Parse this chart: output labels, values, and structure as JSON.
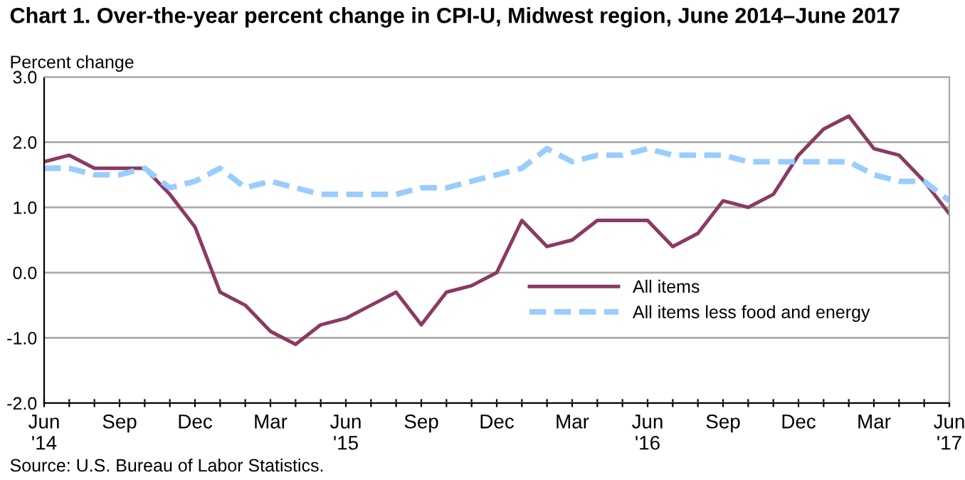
{
  "chart_data": {
    "type": "line",
    "title": "Chart 1. Over-the-year percent change in CPI-U, Midwest region, June 2014–June 2017",
    "ylabel": "Percent change",
    "categories": [
      "Jun\n'14",
      null,
      null,
      "Sep",
      null,
      null,
      "Dec",
      null,
      null,
      "Mar",
      null,
      null,
      "Jun\n'15",
      null,
      null,
      "Sep",
      null,
      null,
      "Dec",
      null,
      null,
      "Mar",
      null,
      null,
      "Jun\n'16",
      null,
      null,
      "Sep",
      null,
      null,
      "Dec",
      null,
      null,
      "Mar",
      null,
      null,
      "Jun\n'17"
    ],
    "series": [
      {
        "name": "All items",
        "color": "#8b3a62",
        "line_style": "solid",
        "values": [
          1.7,
          1.8,
          1.6,
          1.6,
          1.6,
          1.2,
          0.7,
          -0.3,
          -0.5,
          -0.9,
          -1.1,
          -0.8,
          -0.7,
          -0.5,
          -0.3,
          -0.8,
          -0.3,
          -0.2,
          0.0,
          0.8,
          0.4,
          0.5,
          0.8,
          0.8,
          0.8,
          0.4,
          0.6,
          1.1,
          1.0,
          1.2,
          1.8,
          2.2,
          2.4,
          1.9,
          1.8,
          1.4,
          0.9
        ]
      },
      {
        "name": "All items less food and energy",
        "color": "#99ccff",
        "line_style": "dashed",
        "values": [
          1.6,
          1.6,
          1.5,
          1.5,
          1.6,
          1.3,
          1.4,
          1.6,
          1.3,
          1.4,
          1.3,
          1.2,
          1.2,
          1.2,
          1.2,
          1.3,
          1.3,
          1.4,
          1.5,
          1.6,
          1.9,
          1.7,
          1.8,
          1.8,
          1.9,
          1.8,
          1.8,
          1.8,
          1.7,
          1.7,
          1.7,
          1.7,
          1.7,
          1.5,
          1.4,
          1.4,
          1.1
        ]
      }
    ],
    "ylim": [
      -2.0,
      3.0
    ],
    "yticks": [
      {
        "value": -2,
        "label": "-2.0"
      },
      {
        "value": -1,
        "label": "-1.0"
      },
      {
        "value": 0,
        "label": "0.0"
      },
      {
        "value": 1,
        "label": "1.0"
      },
      {
        "value": 2,
        "label": "2.0"
      },
      {
        "value": 3,
        "label": "3.0"
      }
    ],
    "grid": "y",
    "legend": "bottom right",
    "marker": "none",
    "annotations": [
      "Source: U.S. Bureau of Labor Statistics."
    ]
  }
}
